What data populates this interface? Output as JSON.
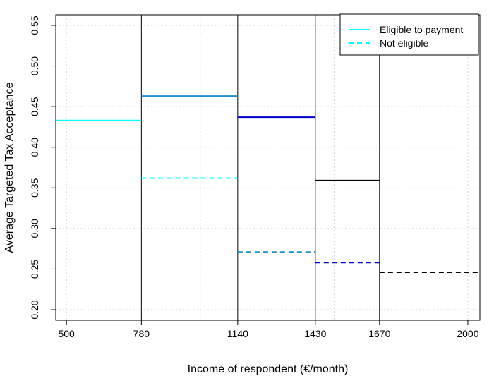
{
  "chart_data": {
    "type": "line",
    "xlabel": "Income of respondent (€/month)",
    "ylabel": "Average Targeted Tax Acceptance",
    "xlim": [
      460,
      2045
    ],
    "ylim": [
      0.187,
      0.563
    ],
    "x_ticks": [
      500,
      780,
      1140,
      1430,
      1670,
      2000
    ],
    "y_ticks": [
      0.2,
      0.25,
      0.3,
      0.35,
      0.4,
      0.45,
      0.5,
      0.55
    ],
    "y_tick_labels": [
      "0.20",
      "0.25",
      "0.30",
      "0.35",
      "0.40",
      "0.45",
      "0.50",
      "0.55"
    ],
    "x_grid": [
      500,
      1000,
      1500,
      2000
    ],
    "y_grid": [
      0.2,
      0.25,
      0.3,
      0.35,
      0.4,
      0.45,
      0.5,
      0.55
    ],
    "grid": true,
    "vlines": [
      780,
      1140,
      1430,
      1670
    ],
    "legend": {
      "position": "top-right"
    },
    "series": [
      {
        "name": "Eligible to payment",
        "style": "solid",
        "segments": [
          {
            "x": [
              460,
              780
            ],
            "y": 0.433,
            "color": "#00FFFF"
          },
          {
            "x": [
              780,
              1140
            ],
            "y": 0.463,
            "color": "#1E90CC"
          },
          {
            "x": [
              1140,
              1430
            ],
            "y": 0.437,
            "color": "#0000CD"
          },
          {
            "x": [
              1430,
              1670
            ],
            "y": 0.359,
            "color": "#000000"
          }
        ],
        "legend_color": "#00FFFF"
      },
      {
        "name": "Not eligible",
        "style": "dashed",
        "segments": [
          {
            "x": [
              780,
              1140
            ],
            "y": 0.362,
            "color": "#00FFFF"
          },
          {
            "x": [
              1140,
              1430
            ],
            "y": 0.271,
            "color": "#1E90CC"
          },
          {
            "x": [
              1430,
              1670
            ],
            "y": 0.258,
            "color": "#0000CD"
          },
          {
            "x": [
              1670,
              2045
            ],
            "y": 0.246,
            "color": "#000000"
          }
        ],
        "legend_color": "#00FFFF"
      }
    ]
  }
}
